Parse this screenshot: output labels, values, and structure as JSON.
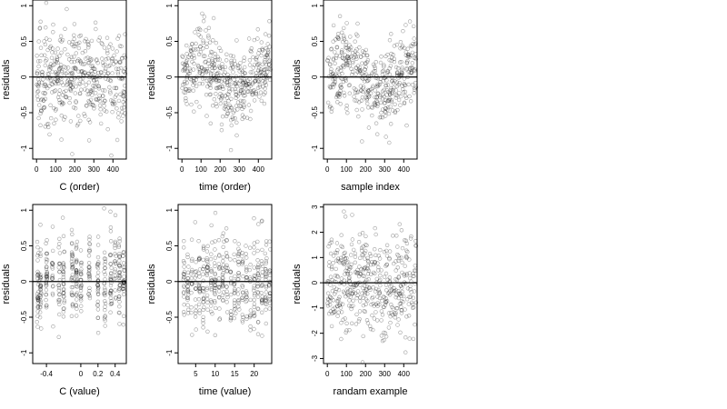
{
  "chart_data": [
    {
      "id": "c-order",
      "type": "scatter",
      "xlabel": "C (order)",
      "ylabel": "residuals",
      "xlim": [
        -20,
        470
      ],
      "ylim": [
        -1.15,
        1.08
      ],
      "xticks": [
        0,
        100,
        200,
        300,
        400
      ],
      "yticks": [
        -1.0,
        -0.5,
        0.0,
        0.5,
        1.0
      ],
      "hline": 0,
      "pattern": "random",
      "n": 460
    },
    {
      "id": "time-order",
      "type": "scatter",
      "xlabel": "time (order)",
      "ylabel": "residuals",
      "xlim": [
        -20,
        470
      ],
      "ylim": [
        -1.15,
        1.08
      ],
      "xticks": [
        0,
        100,
        200,
        300,
        400
      ],
      "yticks": [
        -1.0,
        -0.5,
        0.0,
        0.5,
        1.0
      ],
      "hline": 0,
      "pattern": "wave",
      "n": 460
    },
    {
      "id": "sample-index",
      "type": "scatter",
      "xlabel": "sample index",
      "ylabel": "residuals",
      "xlim": [
        -20,
        470
      ],
      "ylim": [
        -1.15,
        1.08
      ],
      "xticks": [
        0,
        100,
        200,
        300,
        400
      ],
      "yticks": [
        -1.0,
        -0.5,
        0.0,
        0.5,
        1.0
      ],
      "hline": 0,
      "pattern": "wave",
      "n": 460
    },
    {
      "id": "c-value",
      "type": "scatter",
      "xlabel": "C (value)",
      "ylabel": "residuals",
      "xlim": [
        -0.56,
        0.53
      ],
      "ylim": [
        -1.15,
        1.08
      ],
      "xticks": [
        -0.4,
        0.0,
        0.2,
        0.4
      ],
      "yticks": [
        -1.0,
        -0.5,
        0.0,
        0.5,
        1.0
      ],
      "hline": 0,
      "pattern": "vertical-clusters",
      "clusters": [
        -0.5,
        -0.47,
        -0.4,
        -0.33,
        -0.25,
        -0.2,
        -0.1,
        -0.05,
        0.0,
        0.1,
        0.2,
        0.28,
        0.35,
        0.4,
        0.45,
        0.5
      ],
      "n": 460
    },
    {
      "id": "time-value",
      "type": "scatter",
      "xlabel": "time (value)",
      "ylabel": "residuals",
      "xlim": [
        0.5,
        24.5
      ],
      "ylim": [
        -1.15,
        1.08
      ],
      "xticks": [
        5,
        10,
        15,
        20
      ],
      "yticks": [
        -1.0,
        -0.5,
        0.0,
        0.5,
        1.0
      ],
      "hline": 0,
      "pattern": "vertical-clusters",
      "clusters": [
        2,
        3,
        4,
        5,
        6,
        7,
        8,
        9,
        10,
        11,
        12,
        13,
        14,
        15,
        16,
        17,
        18,
        19,
        20,
        21,
        22,
        23,
        24
      ],
      "n": 460
    },
    {
      "id": "random-example",
      "type": "scatter",
      "xlabel": "randam example",
      "ylabel": "residuals",
      "xlim": [
        -20,
        470
      ],
      "ylim": [
        -3.2,
        3.1
      ],
      "xticks": [
        0,
        100,
        200,
        300,
        400
      ],
      "yticks": [
        -3,
        -2,
        -1,
        0,
        1,
        2,
        3
      ],
      "hline": 0,
      "pattern": "random-wide",
      "n": 460
    }
  ]
}
